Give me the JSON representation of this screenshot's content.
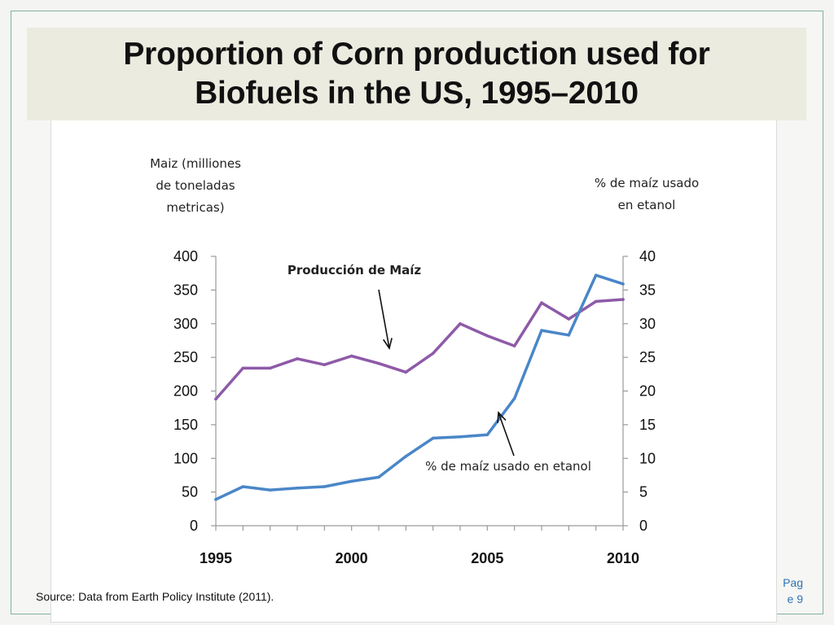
{
  "title": {
    "line1": "Proportion of Corn production used for",
    "line2": "Biofuels in the US, 1995–2010"
  },
  "source": "Source: Data from Earth Policy Institute (2011).",
  "page": {
    "line1": "Pag",
    "line2": "e 9"
  },
  "colors": {
    "corn": "#8e5aa8",
    "ethanol": "#4a86c8",
    "title_bg": "#ecebe0",
    "page_num": "#2e74b5"
  },
  "chart_data": {
    "type": "line",
    "x": [
      1995,
      1996,
      1997,
      1998,
      1999,
      2000,
      2001,
      2002,
      2003,
      2004,
      2005,
      2006,
      2007,
      2008,
      2009,
      2010
    ],
    "left_axis": {
      "label_lines": [
        "Maiz (milliones",
        "de toneladas",
        "metricas)"
      ],
      "ylim": [
        0,
        400
      ],
      "ticks": [
        "0",
        "50",
        "100",
        "150",
        "200",
        "250",
        "300",
        "350",
        "400"
      ]
    },
    "right_axis": {
      "label_lines": [
        "%  de maíz usado",
        "en etanol"
      ],
      "ylim": [
        0,
        40
      ],
      "ticks": [
        "0",
        "5",
        "10",
        "15",
        "20",
        "25",
        "30",
        "35",
        "40"
      ]
    },
    "x_ticks": [
      "1995",
      "2000",
      "2005",
      "2010"
    ],
    "series": [
      {
        "name": "Producción de Maíz",
        "axis": "left",
        "values": [
          188,
          234,
          234,
          248,
          239,
          252,
          241,
          228,
          256,
          300,
          282,
          267,
          331,
          307,
          333,
          336
        ]
      },
      {
        "name": "%  de maíz usado en etanol",
        "axis": "right",
        "values": [
          3.9,
          5.8,
          5.3,
          5.6,
          5.8,
          6.6,
          7.2,
          10.3,
          13.0,
          13.2,
          13.5,
          18.9,
          29.0,
          28.3,
          37.2,
          35.9
        ]
      }
    ],
    "annotations": [
      "Producción de Maíz",
      "%  de maíz usado en etanol"
    ],
    "grid": false
  }
}
